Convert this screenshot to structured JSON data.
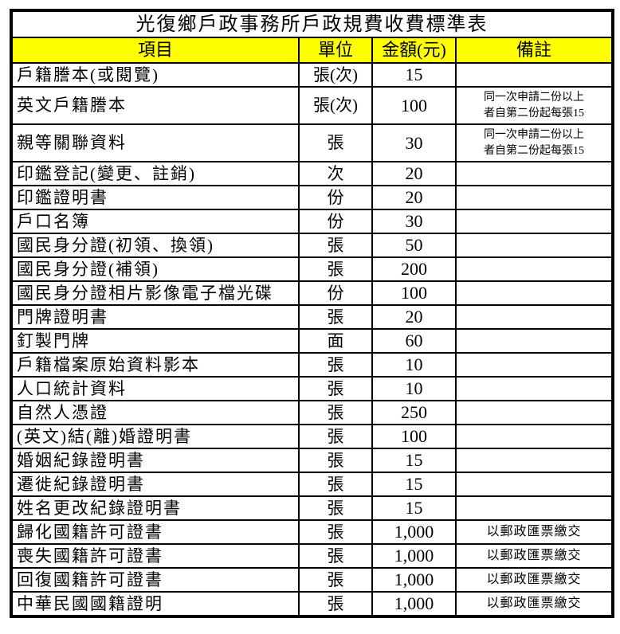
{
  "title": "光復鄉戶政事務所戶政規費收費標準表",
  "headers": {
    "item": "項目",
    "unit": "單位",
    "amount": "金額(元)",
    "note": "備註"
  },
  "rows": [
    {
      "item": "戶籍謄本(或閱覽)",
      "unit": "張(次)",
      "amount": "15",
      "note": ""
    },
    {
      "item": "英文戶籍謄本",
      "unit": "張(次)",
      "amount": "100",
      "note": "同一次申請二份以上",
      "note2": "者自第二份起每張15"
    },
    {
      "item": "親等關聯資料",
      "unit": "張",
      "amount": "30",
      "note": "同一次申請二份以上",
      "note2": "者自第二份起每張15"
    },
    {
      "item": "印鑑登記(變更、註銷)",
      "unit": "次",
      "amount": "20",
      "note": ""
    },
    {
      "item": "印鑑證明書",
      "unit": "份",
      "amount": "20",
      "note": ""
    },
    {
      "item": "戶口名簿",
      "unit": "份",
      "amount": "30",
      "note": ""
    },
    {
      "item": "國民身分證(初領、換領)",
      "unit": "張",
      "amount": "50",
      "note": ""
    },
    {
      "item": "國民身分證(補領)",
      "unit": "張",
      "amount": "200",
      "note": ""
    },
    {
      "item": "國民身分證相片影像電子檔光碟",
      "unit": "份",
      "amount": "100",
      "note": ""
    },
    {
      "item": "門牌證明書",
      "unit": "張",
      "amount": "20",
      "note": ""
    },
    {
      "item": "釘製門牌",
      "unit": "面",
      "amount": "60",
      "note": ""
    },
    {
      "item": "戶籍檔案原始資料影本",
      "unit": "張",
      "amount": "10",
      "note": ""
    },
    {
      "item": "人口統計資料",
      "unit": "張",
      "amount": "10",
      "note": ""
    },
    {
      "item": "自然人憑證",
      "unit": "張",
      "amount": "250",
      "note": ""
    },
    {
      "item": "(英文)結(離)婚證明書",
      "unit": "張",
      "amount": "100",
      "note": ""
    },
    {
      "item": "婚姻紀錄證明書",
      "unit": "張",
      "amount": "15",
      "note": ""
    },
    {
      "item": "遷徙紀錄證明書",
      "unit": "張",
      "amount": "15",
      "note": ""
    },
    {
      "item": "姓名更改紀錄證明書",
      "unit": "張",
      "amount": "15",
      "note": ""
    },
    {
      "item": "歸化國籍許可證書",
      "unit": "張",
      "amount": "1,000",
      "note": "以郵政匯票繳交"
    },
    {
      "item": "喪失國籍許可證書",
      "unit": "張",
      "amount": "1,000",
      "note": "以郵政匯票繳交"
    },
    {
      "item": "回復國籍許可證書",
      "unit": "張",
      "amount": "1,000",
      "note": "以郵政匯票繳交"
    },
    {
      "item": "中華民國國籍證明",
      "unit": "張",
      "amount": "1,000",
      "note": "以郵政匯票繳交"
    }
  ],
  "colors": {
    "header_bg": "#ffff00",
    "border": "#000000"
  }
}
